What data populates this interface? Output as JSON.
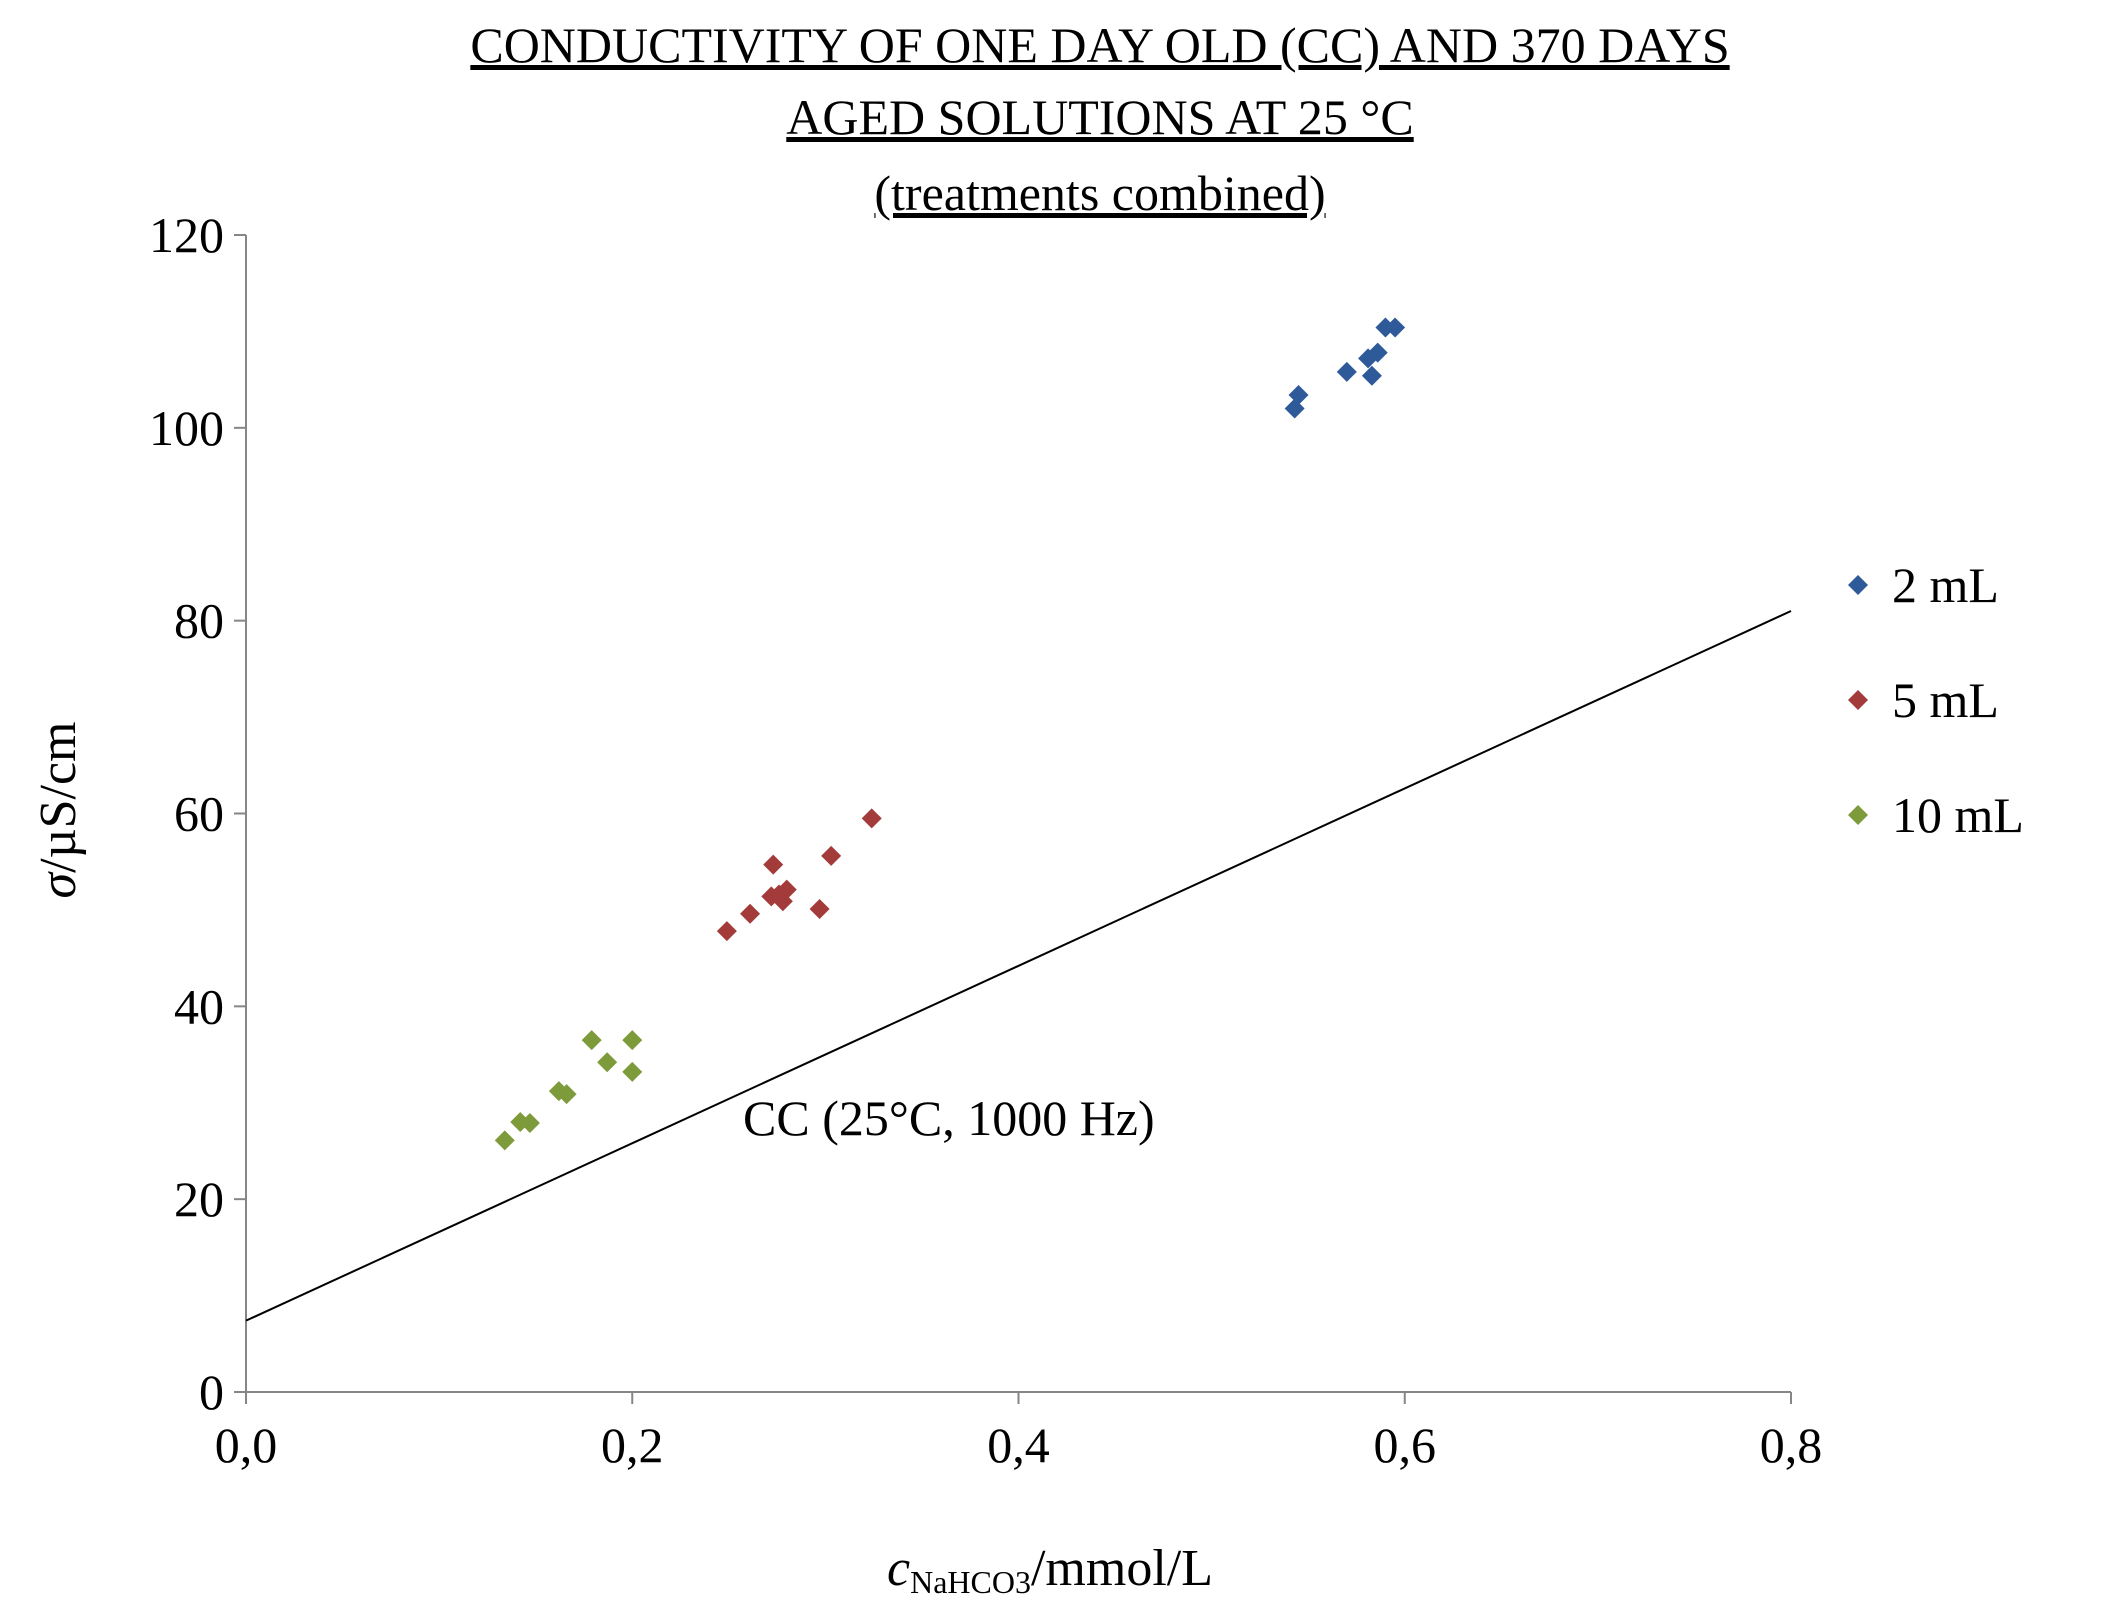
{
  "chart_data": {
    "type": "scatter",
    "title_lines": [
      "CONDUCTIVITY OF ONE DAY OLD (CC) AND 370 DAYS",
      "AGED SOLUTIONS AT 25 °C",
      "(treatments combined)"
    ],
    "xlabel": {
      "var": "c",
      "sub": "NaHCO3",
      "unit": "/mmol/L"
    },
    "ylabel": {
      "var": "σ",
      "unit": "/µS/cm"
    },
    "xlim": [
      0,
      0.8
    ],
    "ylim": [
      0,
      120
    ],
    "x_ticks": [
      "0,0",
      "0,2",
      "0,4",
      "0,6",
      "0,8"
    ],
    "y_ticks": [
      "0",
      "20",
      "40",
      "60",
      "80",
      "100",
      "120"
    ],
    "x_tick_values": [
      0,
      0.2,
      0.4,
      0.6,
      0.8
    ],
    "y_tick_values": [
      0,
      20,
      40,
      60,
      80,
      100,
      120
    ],
    "grid": false,
    "legend_position": "right",
    "series": [
      {
        "name": "2 mL",
        "color": "#2e5a9a",
        "marker": "diamond",
        "points": [
          [
            0.543,
            102.0
          ],
          [
            0.545,
            103.4
          ],
          [
            0.57,
            105.8
          ],
          [
            0.581,
            107.2
          ],
          [
            0.583,
            105.4
          ],
          [
            0.586,
            107.8
          ],
          [
            0.59,
            110.4
          ],
          [
            0.595,
            110.4
          ]
        ]
      },
      {
        "name": "5 mL",
        "color": "#a23b3a",
        "marker": "diamond",
        "points": [
          [
            0.249,
            47.8
          ],
          [
            0.261,
            49.6
          ],
          [
            0.273,
            54.7
          ],
          [
            0.272,
            51.4
          ],
          [
            0.276,
            51.6
          ],
          [
            0.278,
            50.9
          ],
          [
            0.28,
            52.1
          ],
          [
            0.297,
            50.1
          ],
          [
            0.303,
            55.6
          ],
          [
            0.324,
            59.5
          ]
        ]
      },
      {
        "name": "10 mL",
        "color": "#7e9b3c",
        "marker": "diamond",
        "points": [
          [
            0.134,
            26.1
          ],
          [
            0.142,
            28.0
          ],
          [
            0.147,
            27.9
          ],
          [
            0.162,
            31.2
          ],
          [
            0.166,
            30.9
          ],
          [
            0.179,
            36.5
          ],
          [
            0.187,
            34.2
          ],
          [
            0.2,
            36.5
          ],
          [
            0.2,
            33.2
          ]
        ]
      }
    ],
    "reference_line": {
      "label": "CC (25°C, 1000 Hz)",
      "color": "#000000",
      "x": [
        0,
        0.8
      ],
      "y": [
        7.4,
        81.0
      ]
    }
  }
}
